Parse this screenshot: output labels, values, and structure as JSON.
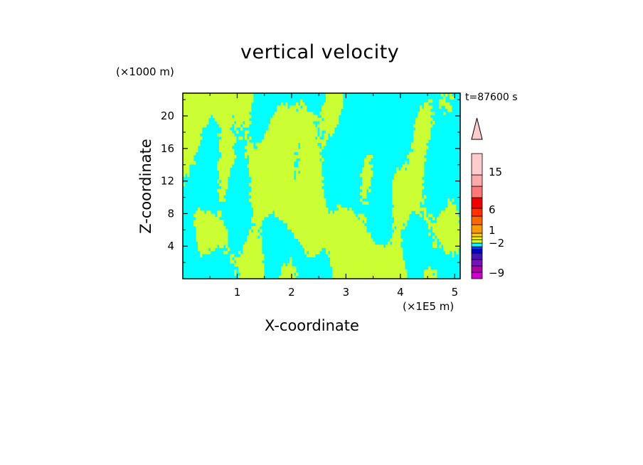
{
  "chart_data": {
    "type": "heatmap",
    "title": "vertical velocity",
    "xlabel": "X-coordinate",
    "ylabel": "Z-coordinate",
    "x_unit_label": "(×1E5 m)",
    "y_unit_label": "(×1000 m)",
    "time_label": "t=87600 s",
    "xlim": [
      0,
      5.1
    ],
    "ylim": [
      0,
      22.8
    ],
    "x_ticks": [
      1,
      2,
      3,
      4,
      5
    ],
    "y_ticks": [
      4,
      8,
      12,
      16,
      20
    ],
    "colorbar": {
      "tick_labels": [
        "15",
        "6",
        "1",
        "−2",
        "−9"
      ],
      "tick_values": [
        15,
        6,
        1,
        -2,
        -9
      ],
      "extend": "max",
      "bands": [
        {
          "color": "#cc00cc"
        },
        {
          "color": "#aa00aa"
        },
        {
          "color": "#7711bb"
        },
        {
          "color": "#4411bb"
        },
        {
          "color": "#0000cc"
        },
        {
          "color": "#0033ff"
        },
        {
          "color": "#00ffff"
        },
        {
          "color": "#ccff33"
        },
        {
          "color": "#ffff00"
        },
        {
          "color": "#ffcc00"
        },
        {
          "color": "#ff9900"
        },
        {
          "color": "#ff6600"
        },
        {
          "color": "#ff3300"
        },
        {
          "color": "#ee0000"
        },
        {
          "color": "#ff7777"
        },
        {
          "color": "#ffaaaa"
        },
        {
          "color": "#ffcccc"
        }
      ]
    },
    "field": {
      "dominant_colors": [
        "#00ffff",
        "#ccff33"
      ],
      "accent_color": "#000088"
    }
  }
}
